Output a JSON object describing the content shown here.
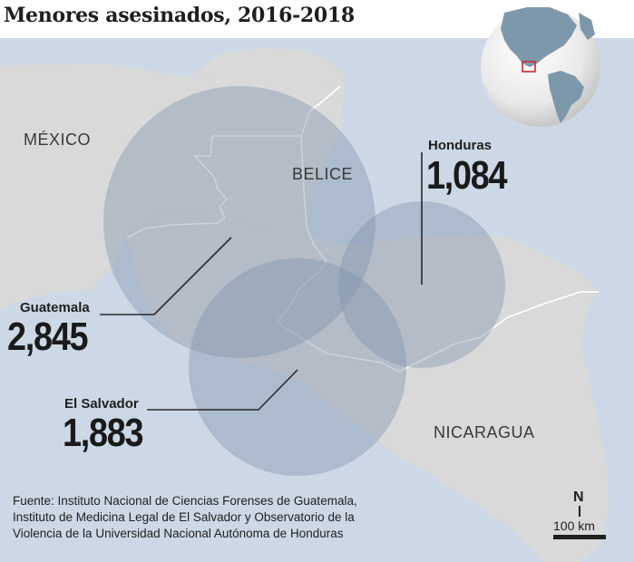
{
  "title": "Menores asesinados, 2016-2018",
  "countries": {
    "mexico": "MÉXICO",
    "belice": "BELICE",
    "nicaragua": "NICARAGUA"
  },
  "markers": {
    "honduras": {
      "label": "Honduras",
      "value": "1,084"
    },
    "guatemala": {
      "label": "Guatemala",
      "value": "2,845"
    },
    "el_salvador": {
      "label": "El Salvador",
      "value": "1,883"
    }
  },
  "source_lines": [
    "Fuente: Instituto Nacional de Ciencias Forenses de Guatemala,",
    "Instituto de Medicina Legal de El Salvador y Observatorio de la",
    "Violencia de la Universidad Nacional Autónoma de Honduras"
  ],
  "scale": {
    "north": "N",
    "distance": "100 km"
  },
  "colors": {
    "sea": "#cdd8e6",
    "land": "#d9d9d9",
    "circle": "#7f93ad",
    "border": "#ffffff"
  },
  "globe_icon": "globe-icon"
}
